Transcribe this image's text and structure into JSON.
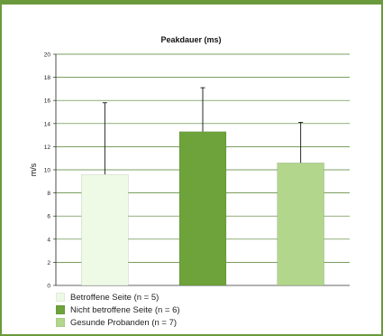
{
  "chart_data": {
    "type": "bar",
    "title": "Peakdauer (ms)",
    "xlabel": "",
    "ylabel": "m/s",
    "ylim": [
      0,
      20
    ],
    "yticks": [
      0,
      2,
      4,
      6,
      8,
      10,
      12,
      14,
      16,
      18,
      20
    ],
    "grid": true,
    "legend_position": "bottom-left",
    "frame_color": "#6a9a3c",
    "series": [
      {
        "name": "Betroffene Seite (n = 5)",
        "value": 9.6,
        "error_upper": 15.8,
        "color": "#eef9e6"
      },
      {
        "name": "Nicht betroffene Seite (n = 6)",
        "value": 13.3,
        "error_upper": 17.1,
        "color": "#6da33a"
      },
      {
        "name": "Gesunde Probanden (n = 7)",
        "value": 10.6,
        "error_upper": 14.1,
        "color": "#b2d68c"
      }
    ]
  }
}
